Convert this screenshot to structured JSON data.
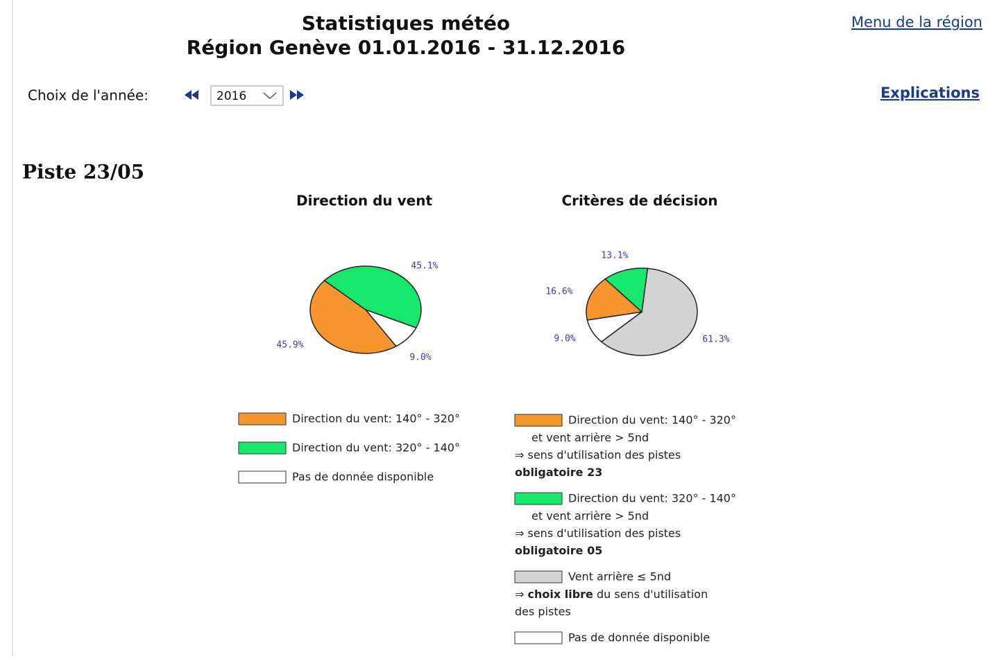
{
  "header": {
    "title": "Statistiques météo",
    "subtitle": "Région Genève 01.01.2016 - 31.12.2016"
  },
  "links": {
    "menu": "Menu de la région",
    "explanations": "Explications"
  },
  "year_selector": {
    "label": "Choix de l'année:",
    "selected": "2016"
  },
  "section_title": "Piste 23/05",
  "chart_data": [
    {
      "type": "pie",
      "title": "Direction du vent",
      "categories": [
        "Direction du vent: 140° - 320°",
        "Direction du vent: 320° - 140°",
        "Pas de donnée disponible"
      ],
      "values": [
        45.9,
        45.1,
        9.0
      ],
      "value_labels": [
        "45.9%",
        "45.1%",
        "9.0%"
      ],
      "colors": [
        "#f7962e",
        "#17e86c",
        "#ffffff"
      ]
    },
    {
      "type": "pie",
      "title": "Critères de décision",
      "categories": [
        "Direction du vent: 140° - 320°",
        "Direction du vent: 320° - 140°",
        "Vent arrière ≤ 5nd",
        "Pas de donnée disponible"
      ],
      "values": [
        16.6,
        13.1,
        61.3,
        9.0
      ],
      "value_labels": [
        "16.6%",
        "13.1%",
        "61.3%",
        "9.0%"
      ],
      "colors": [
        "#f7962e",
        "#17e86c",
        "#d3d3d3",
        "#ffffff"
      ],
      "category_notes": [
        [
          [
            {
              "text": "et vent arrière > 5nd"
            }
          ],
          [
            {
              "text": "⇒ sens d'utilisation des pistes"
            }
          ],
          [
            {
              "text": "obligatoire 23",
              "bold": true
            }
          ]
        ],
        [
          [
            {
              "text": "et vent arrière > 5nd"
            }
          ],
          [
            {
              "text": "⇒ sens d'utilisation des pistes"
            }
          ],
          [
            {
              "text": "obligatoire 05",
              "bold": true
            }
          ]
        ],
        [
          [
            {
              "text": "⇒ "
            },
            {
              "text": "choix libre",
              "bold": true
            },
            {
              "text": " du sens d'utilisation"
            }
          ],
          [
            {
              "text": "des pistes"
            }
          ]
        ],
        []
      ]
    }
  ]
}
